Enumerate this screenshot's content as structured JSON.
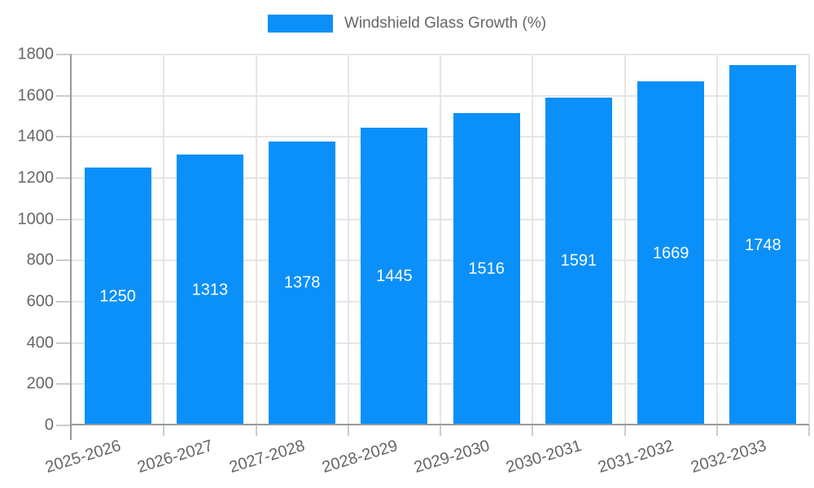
{
  "chart_data": {
    "type": "bar",
    "title": "Windshield Glass Growth (%)",
    "categories": [
      "2025-2026",
      "2026-2027",
      "2027-2028",
      "2028-2029",
      "2029-2030",
      "2030-2031",
      "2031-2032",
      "2032-2033"
    ],
    "values": [
      1250,
      1313,
      1378,
      1445,
      1516,
      1591,
      1669,
      1748
    ],
    "value_labels": [
      "1250",
      "1313",
      "1378",
      "1445",
      "1516",
      "1591",
      "1669",
      "1748"
    ],
    "xlabel": "",
    "ylabel": "",
    "ylim": [
      0,
      1800
    ],
    "ytick_step": 200,
    "ytick_labels": [
      "0",
      "200",
      "400",
      "600",
      "800",
      "1000",
      "1200",
      "1400",
      "1600",
      "1800"
    ],
    "grid": true,
    "legend_position": "top",
    "colors": {
      "bar": "#0a90f8",
      "value_label": "#ffffff",
      "text": "#666666",
      "grid": "#e5e5e5",
      "axis": "#999999",
      "tick": "#cccccc",
      "background": "#ffffff"
    }
  }
}
